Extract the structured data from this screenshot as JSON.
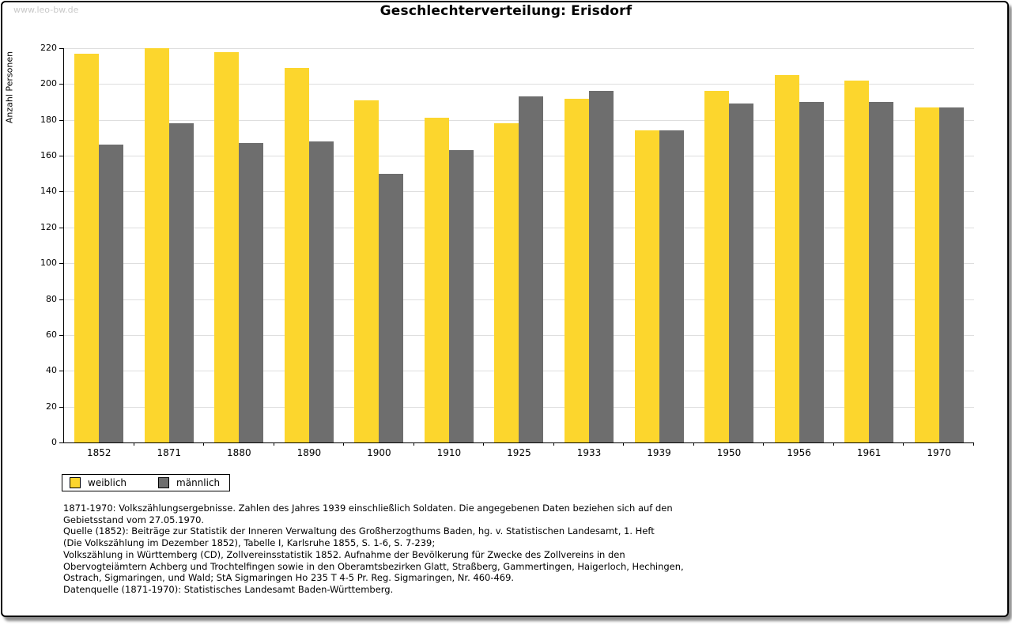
{
  "page": {
    "watermark": "www.leo-bw.de",
    "title": "Geschlechterverteilung: Erisdorf"
  },
  "chart_data": {
    "type": "bar",
    "title": "Geschlechterverteilung: Erisdorf",
    "xlabel": "",
    "ylabel": "Anzahl Personen",
    "ylim": [
      0,
      220
    ],
    "ytick_step": 20,
    "grid": true,
    "legend_position": "bottom-left",
    "categories": [
      "1852",
      "1871",
      "1880",
      "1890",
      "1900",
      "1910",
      "1925",
      "1933",
      "1939",
      "1950",
      "1956",
      "1961",
      "1970"
    ],
    "series": [
      {
        "name": "weiblich",
        "color": "#fcd62d",
        "values": [
          217,
          220,
          218,
          209,
          191,
          181,
          178,
          192,
          174,
          196,
          205,
          202,
          187
        ]
      },
      {
        "name": "männlich",
        "color": "#6e6e6e",
        "values": [
          166,
          178,
          167,
          168,
          150,
          163,
          193,
          196,
          174,
          189,
          190,
          190,
          187
        ]
      }
    ]
  },
  "colors": {
    "gridline": "#dedede",
    "axis": "#000000",
    "watermark": "#c9c9c9"
  },
  "footnotes": {
    "lines": [
      "1871-1970: Volkszählungsergebnisse. Zahlen des Jahres 1939 einschließlich Soldaten. Die angegebenen Daten beziehen sich auf den",
      "Gebietsstand vom 27.05.1970.",
      "Quelle (1852): Beiträge zur Statistik der Inneren Verwaltung des Großherzogthums Baden, hg. v. Statistischen Landesamt, 1. Heft",
      "(Die Volkszählung im Dezember 1852), Tabelle I, Karlsruhe 1855, S. 1-6, S. 7-239;",
      "Volkszählung in Württemberg (CD), Zollvereinsstatistik 1852. Aufnahme der Bevölkerung für Zwecke des Zollvereins in den",
      "Obervogteiämtern Achberg und Trochtelfingen sowie in den Oberamtsbezirken Glatt, Straßberg, Gammertingen, Haigerloch, Hechingen,",
      "Ostrach, Sigmaringen, und Wald; StA Sigmaringen Ho 235 T 4-5 Pr. Reg. Sigmaringen, Nr. 460-469."
    ],
    "datasource": "Datenquelle (1871-1970): Statistisches Landesamt Baden-Württemberg."
  }
}
